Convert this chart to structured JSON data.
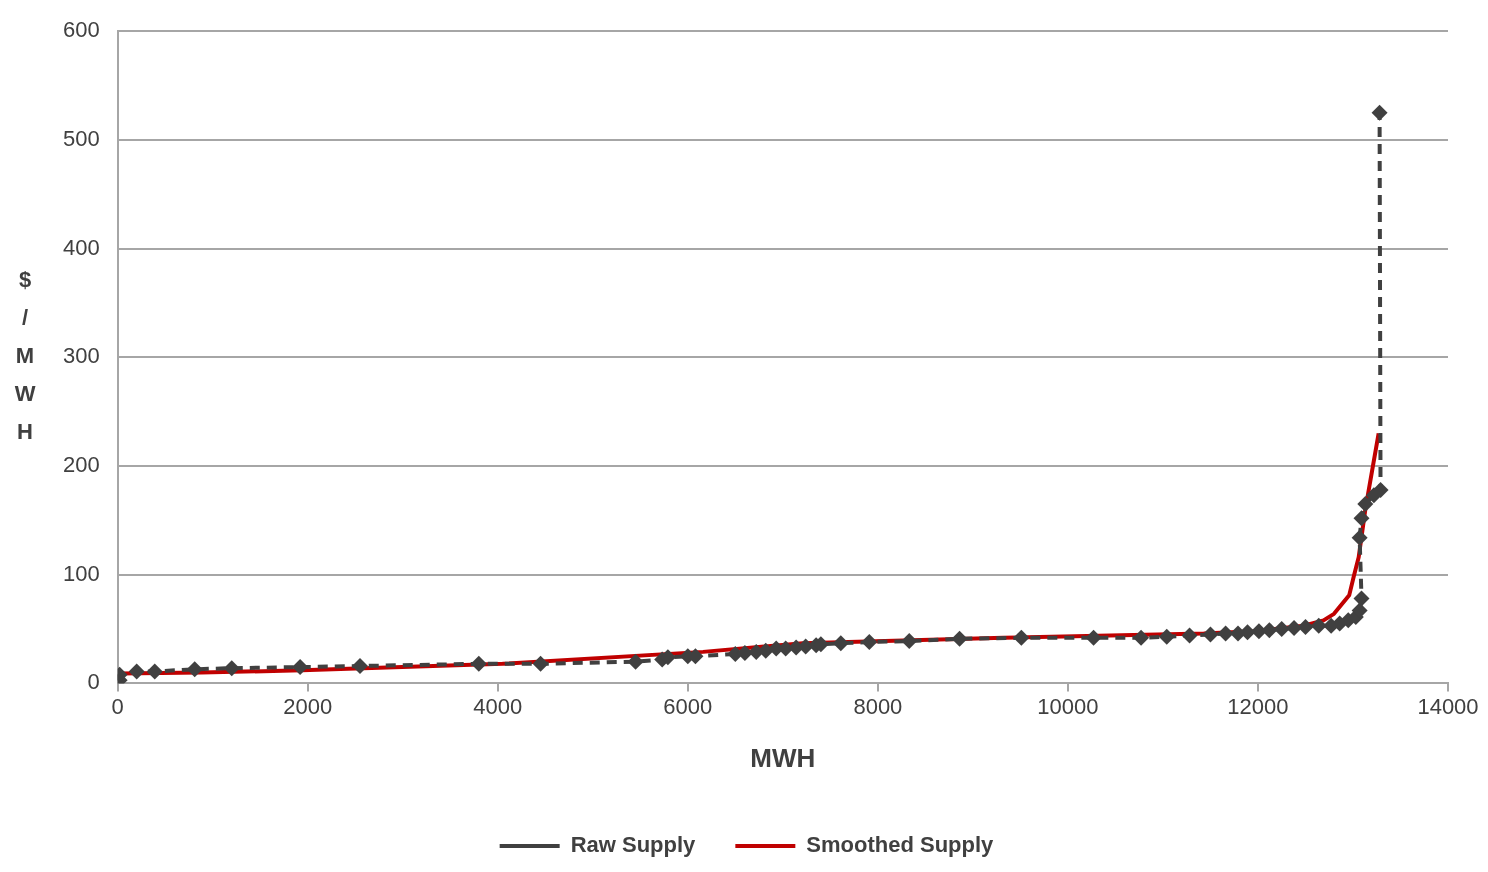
{
  "chart_data": {
    "type": "line",
    "xlabel": "MWH",
    "ylabel": "$/MWH",
    "xlim": [
      0,
      14000
    ],
    "xticks": [
      0,
      2000,
      4000,
      6000,
      8000,
      10000,
      12000,
      14000
    ],
    "ylim": [
      0,
      600
    ],
    "yticks": [
      0,
      100,
      200,
      300,
      400,
      500,
      600
    ],
    "grid": "y",
    "legend": "bottom",
    "series": [
      {
        "name": "Raw Supply",
        "color": "#404040",
        "marker": "diamond",
        "line_style": "dashed",
        "x": [
          20,
          20,
          200,
          390,
          810,
          1200,
          1920,
          2550,
          3800,
          4450,
          5450,
          5730,
          5790,
          6000,
          6080,
          6500,
          6600,
          6720,
          6820,
          6930,
          7030,
          7140,
          7240,
          7350,
          7400,
          7610,
          7910,
          8330,
          8860,
          9510,
          10270,
          10770,
          11040,
          11280,
          11500,
          11660,
          11790,
          11890,
          12010,
          12120,
          12250,
          12380,
          12500,
          12640,
          12770,
          12860,
          12950,
          13030,
          13070,
          13090,
          13070,
          13090,
          13130,
          13220,
          13290,
          13280
        ],
        "values": [
          3,
          8,
          11,
          11,
          13,
          14,
          15,
          16,
          18,
          18,
          20,
          22,
          24,
          25,
          25,
          27,
          28,
          29,
          30,
          32,
          32,
          33,
          34,
          35,
          36,
          37,
          38,
          39,
          41,
          42,
          42,
          42,
          43,
          44,
          45,
          46,
          46,
          47,
          48,
          49,
          50,
          51,
          52,
          53,
          53,
          55,
          58,
          61,
          67,
          78,
          134,
          152,
          165,
          173,
          178,
          525
        ]
      },
      {
        "name": "Smoothed Supply",
        "color": "#c00000",
        "marker": "none",
        "line_style": "solid",
        "x": [
          20,
          885,
          1940,
          4050,
          6160,
          7210,
          9320,
          11430,
          11950,
          12480,
          12690,
          12800,
          12960,
          13010,
          13060,
          13130,
          13200,
          13270
        ],
        "values": [
          9,
          10,
          12,
          18,
          29,
          37,
          42,
          46,
          48,
          53,
          58,
          64,
          81,
          99,
          116,
          160,
          195,
          230
        ]
      }
    ]
  }
}
